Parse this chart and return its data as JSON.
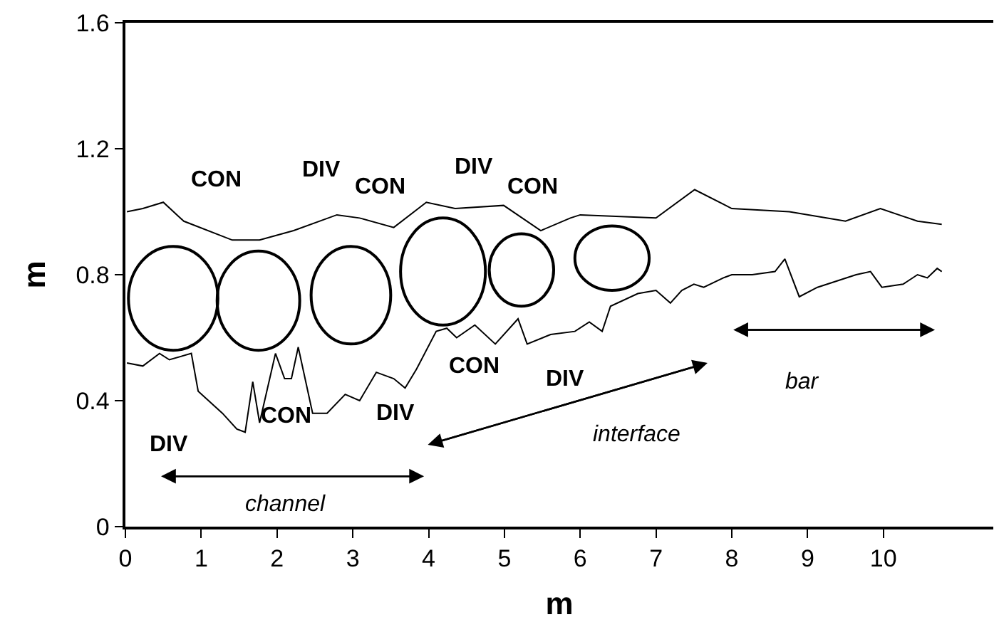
{
  "chart_data": {
    "type": "line",
    "xlabel": "m",
    "ylabel": "m",
    "xlim": [
      0,
      11.45
    ],
    "ylim": [
      0,
      1.6
    ],
    "xticks": [
      0,
      1,
      2,
      3,
      4,
      5,
      6,
      7,
      8,
      9,
      10
    ],
    "yticks": [
      0,
      0.4,
      0.8,
      1.2,
      1.6
    ],
    "marker": "none",
    "line_style": "solid",
    "series": [
      {
        "color": "#000000",
        "x": [
          0.02,
          0.23,
          0.5,
          0.77,
          1.41,
          1.77,
          2.22,
          2.79,
          3.09,
          3.54,
          3.97,
          4.35,
          4.99,
          5.48,
          5.87,
          6.0,
          7.0,
          7.51,
          8.0,
          8.76,
          9.5,
          9.96,
          10.45,
          10.77
        ],
        "values": [
          1.0,
          1.01,
          1.03,
          0.97,
          0.91,
          0.91,
          0.94,
          0.99,
          0.98,
          0.95,
          1.03,
          1.01,
          1.02,
          0.94,
          0.98,
          0.99,
          0.98,
          1.07,
          1.01,
          1.0,
          0.97,
          1.01,
          0.97,
          0.96
        ]
      },
      {
        "color": "#000000",
        "x": [
          0.02,
          0.23,
          0.45,
          0.58,
          0.87,
          0.96,
          1.28,
          1.47,
          1.58,
          1.68,
          1.77,
          1.98,
          2.1,
          2.19,
          2.28,
          2.47,
          2.66,
          2.9,
          3.09,
          3.31,
          3.54,
          3.69,
          3.84,
          4.1,
          4.24,
          4.37,
          4.61,
          4.88,
          5.18,
          5.3,
          5.61,
          5.93,
          6.12,
          6.29,
          6.4,
          6.76,
          7.0,
          7.19,
          7.34,
          7.5,
          7.63,
          7.89,
          8.0,
          8.27,
          8.57,
          8.7,
          8.89,
          9.13,
          9.64,
          9.83,
          9.98,
          10.26,
          10.45,
          10.58,
          10.71,
          10.77
        ],
        "values": [
          0.52,
          0.51,
          0.55,
          0.53,
          0.55,
          0.43,
          0.36,
          0.31,
          0.3,
          0.46,
          0.33,
          0.55,
          0.47,
          0.47,
          0.57,
          0.36,
          0.36,
          0.42,
          0.4,
          0.49,
          0.47,
          0.44,
          0.5,
          0.62,
          0.63,
          0.6,
          0.64,
          0.58,
          0.66,
          0.58,
          0.61,
          0.62,
          0.65,
          0.62,
          0.7,
          0.74,
          0.75,
          0.71,
          0.75,
          0.77,
          0.76,
          0.79,
          0.8,
          0.8,
          0.81,
          0.85,
          0.73,
          0.76,
          0.8,
          0.81,
          0.76,
          0.77,
          0.8,
          0.79,
          0.82,
          0.81
        ]
      }
    ],
    "annotations": [
      "CON",
      "DIV",
      "CON",
      "DIV",
      "CON",
      "CON",
      "DIV",
      "DIV",
      "CON",
      "DIV",
      "channel",
      "interface",
      "bar"
    ]
  }
}
